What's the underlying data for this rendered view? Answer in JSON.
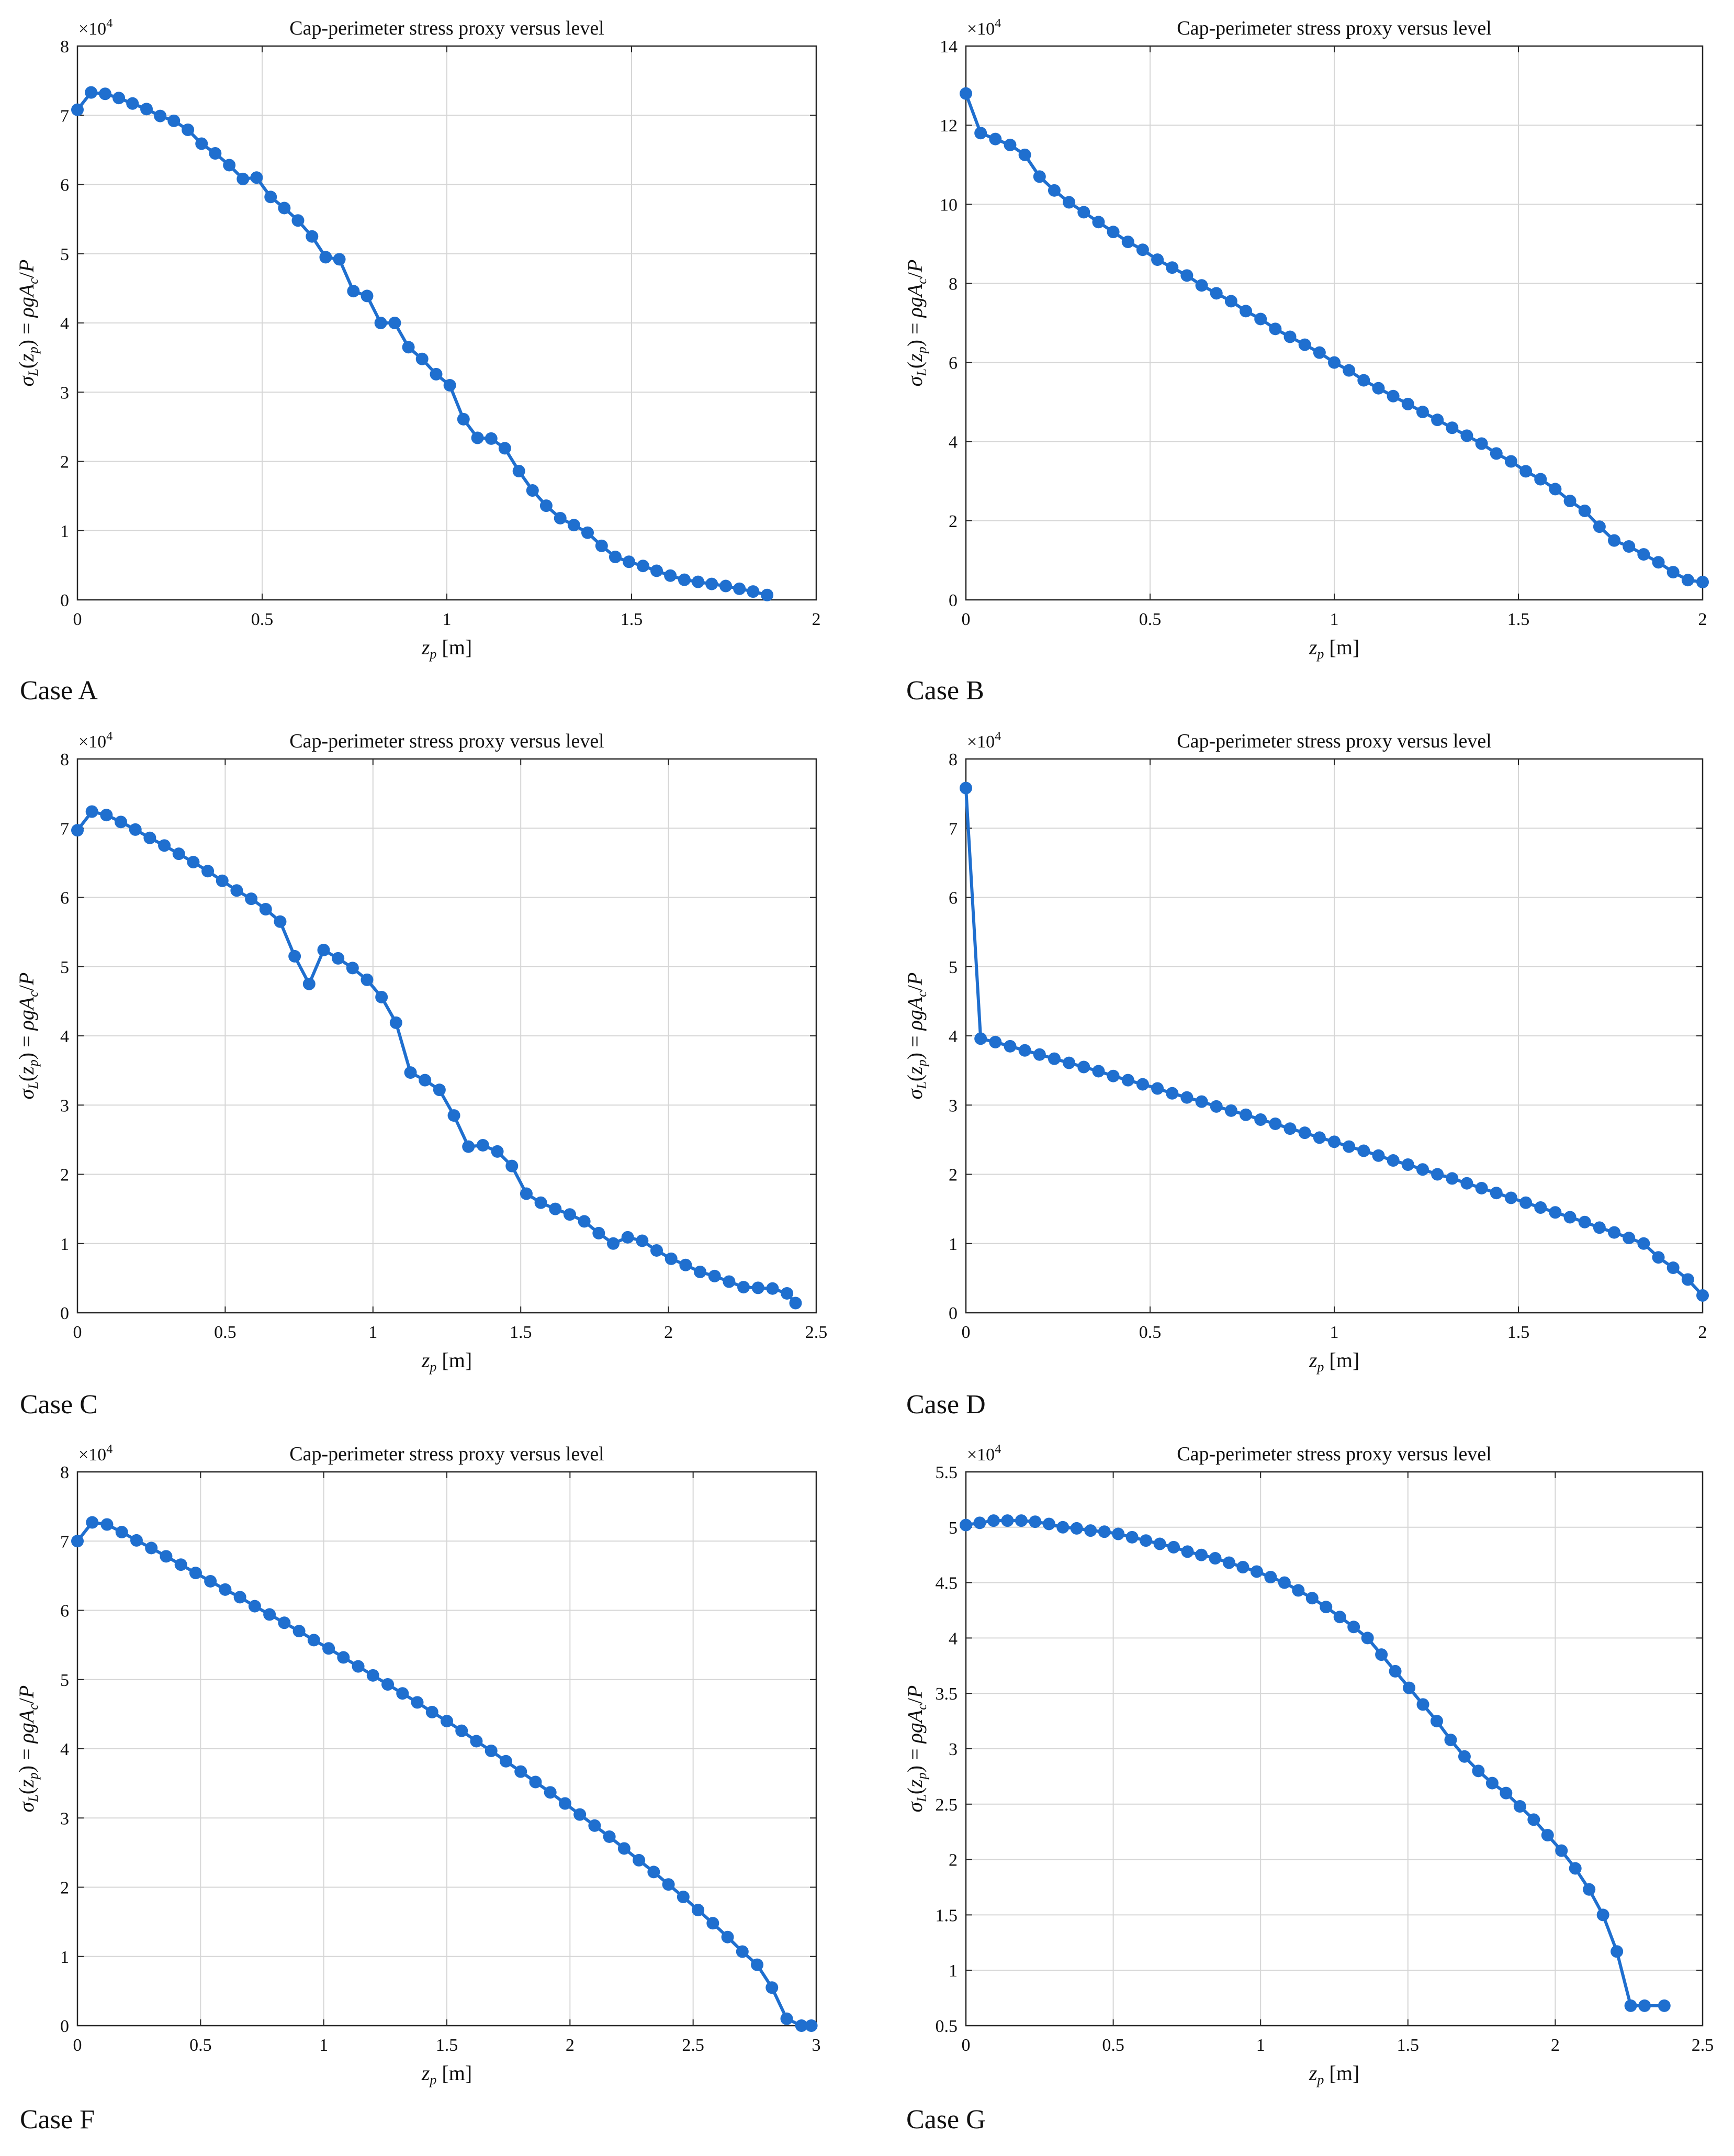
{
  "colors": {
    "series": "#1f6fcf",
    "grid": "#d6d6d6",
    "axis": "#262626",
    "text": "#111111"
  },
  "chart_data": [
    {
      "label": "Case A",
      "type": "line",
      "title": "Cap-perimeter stress proxy versus level",
      "xlabel": "z_p [m]",
      "ylabel": "σ_L(z_p) = ρgA_c/P",
      "multiplier": "×10^4",
      "xlim": [
        0,
        2
      ],
      "ylim": [
        0,
        8
      ],
      "xticks": [
        "0",
        "0.5",
        "1",
        "1.5",
        "2"
      ],
      "yticks": [
        "0",
        "1",
        "2",
        "3",
        "4",
        "5",
        "6",
        "7",
        "8"
      ],
      "grid": true,
      "series": [
        {
          "x": [
            0.0,
            0.037,
            0.075,
            0.112,
            0.149,
            0.187,
            0.224,
            0.261,
            0.299,
            0.336,
            0.373,
            0.411,
            0.448,
            0.485,
            0.523,
            0.56,
            0.597,
            0.635,
            0.672,
            0.709,
            0.747,
            0.784,
            0.821,
            0.859,
            0.896,
            0.933,
            0.971,
            1.008,
            1.045,
            1.083,
            1.12,
            1.157,
            1.195,
            1.232,
            1.269,
            1.307,
            1.344,
            1.381,
            1.419,
            1.456,
            1.493,
            1.531,
            1.568,
            1.605,
            1.643,
            1.68,
            1.717,
            1.755,
            1.792,
            1.829,
            1.867
          ],
          "y": [
            7.08,
            7.33,
            7.31,
            7.25,
            7.17,
            7.09,
            6.99,
            6.92,
            6.79,
            6.59,
            6.45,
            6.28,
            6.08,
            6.1,
            5.82,
            5.66,
            5.48,
            5.25,
            4.95,
            4.92,
            4.46,
            4.39,
            4.0,
            4.0,
            3.65,
            3.48,
            3.26,
            3.1,
            2.61,
            2.34,
            2.33,
            2.19,
            1.86,
            1.58,
            1.36,
            1.18,
            1.08,
            0.97,
            0.78,
            0.62,
            0.55,
            0.49,
            0.42,
            0.35,
            0.29,
            0.26,
            0.23,
            0.2,
            0.16,
            0.12,
            0.07
          ]
        }
      ]
    },
    {
      "label": "Case B",
      "type": "line",
      "title": "Cap-perimeter stress proxy versus level",
      "xlabel": "z_p [m]",
      "ylabel": "σ_L(z_p) = ρgA_c/P",
      "multiplier": "×10^4",
      "xlim": [
        0,
        2
      ],
      "ylim": [
        0,
        14
      ],
      "xticks": [
        "0",
        "0.5",
        "1",
        "1.5",
        "2"
      ],
      "yticks": [
        "0",
        "2",
        "4",
        "6",
        "8",
        "10",
        "12",
        "14"
      ],
      "grid": true,
      "series": [
        {
          "x": [
            0.0,
            0.04,
            0.08,
            0.12,
            0.16,
            0.2,
            0.24,
            0.28,
            0.32,
            0.36,
            0.4,
            0.44,
            0.48,
            0.52,
            0.56,
            0.6,
            0.64,
            0.68,
            0.72,
            0.76,
            0.8,
            0.84,
            0.88,
            0.92,
            0.96,
            1.0,
            1.04,
            1.08,
            1.12,
            1.16,
            1.2,
            1.24,
            1.28,
            1.32,
            1.36,
            1.4,
            1.44,
            1.48,
            1.52,
            1.56,
            1.6,
            1.64,
            1.68,
            1.72,
            1.76,
            1.8,
            1.84,
            1.88,
            1.92,
            1.96,
            2.0
          ],
          "y": [
            12.8,
            11.8,
            11.65,
            11.5,
            11.25,
            10.7,
            10.35,
            10.05,
            9.8,
            9.55,
            9.3,
            9.05,
            8.85,
            8.6,
            8.4,
            8.2,
            7.95,
            7.75,
            7.55,
            7.3,
            7.1,
            6.85,
            6.65,
            6.45,
            6.25,
            6.0,
            5.8,
            5.55,
            5.35,
            5.15,
            4.95,
            4.75,
            4.55,
            4.35,
            4.15,
            3.95,
            3.7,
            3.5,
            3.25,
            3.05,
            2.8,
            2.5,
            2.25,
            1.85,
            1.5,
            1.35,
            1.15,
            0.95,
            0.7,
            0.5,
            0.45
          ]
        }
      ]
    },
    {
      "label": "Case C",
      "type": "line",
      "title": "Cap-perimeter stress proxy versus level",
      "xlabel": "z_p [m]",
      "ylabel": "σ_L(z_p) = ρgA_c/P",
      "multiplier": "×10^4",
      "xlim": [
        0,
        2.5
      ],
      "ylim": [
        0,
        8
      ],
      "xticks": [
        "0",
        "0.5",
        "1",
        "1.5",
        "2",
        "2.5"
      ],
      "yticks": [
        "0",
        "1",
        "2",
        "3",
        "4",
        "5",
        "6",
        "7",
        "8"
      ],
      "grid": true,
      "series": [
        {
          "x": [
            0.0,
            0.049,
            0.098,
            0.147,
            0.196,
            0.245,
            0.294,
            0.343,
            0.392,
            0.441,
            0.49,
            0.539,
            0.588,
            0.637,
            0.686,
            0.735,
            0.784,
            0.833,
            0.882,
            0.931,
            0.98,
            1.029,
            1.078,
            1.127,
            1.176,
            1.225,
            1.274,
            1.323,
            1.372,
            1.421,
            1.47,
            1.519,
            1.568,
            1.617,
            1.666,
            1.715,
            1.764,
            1.813,
            1.862,
            1.911,
            1.96,
            2.009,
            2.058,
            2.107,
            2.156,
            2.205,
            2.254,
            2.303,
            2.352,
            2.401,
            2.43
          ],
          "y": [
            6.97,
            7.24,
            7.19,
            7.09,
            6.98,
            6.86,
            6.75,
            6.63,
            6.51,
            6.38,
            6.24,
            6.1,
            5.98,
            5.83,
            5.65,
            5.15,
            4.75,
            5.24,
            5.12,
            4.98,
            4.81,
            4.56,
            4.19,
            3.47,
            3.36,
            3.22,
            2.85,
            2.4,
            2.42,
            2.33,
            2.12,
            1.72,
            1.59,
            1.5,
            1.42,
            1.32,
            1.15,
            1.0,
            1.09,
            1.04,
            0.9,
            0.78,
            0.69,
            0.59,
            0.53,
            0.45,
            0.37,
            0.36,
            0.35,
            0.28,
            0.14
          ]
        }
      ]
    },
    {
      "label": "Case D",
      "type": "line",
      "title": "Cap-perimeter stress proxy versus level",
      "xlabel": "z_p [m]",
      "ylabel": "σ_L(z_p) = ρgA_c/P",
      "multiplier": "×10^4",
      "xlim": [
        0,
        2
      ],
      "ylim": [
        0,
        8
      ],
      "xticks": [
        "0",
        "0.5",
        "1",
        "1.5",
        "2"
      ],
      "yticks": [
        "0",
        "1",
        "2",
        "3",
        "4",
        "5",
        "6",
        "7",
        "8"
      ],
      "grid": true,
      "series": [
        {
          "x": [
            0.0,
            0.04,
            0.08,
            0.12,
            0.16,
            0.2,
            0.24,
            0.28,
            0.32,
            0.36,
            0.4,
            0.44,
            0.48,
            0.52,
            0.56,
            0.6,
            0.64,
            0.68,
            0.72,
            0.76,
            0.8,
            0.84,
            0.88,
            0.92,
            0.96,
            1.0,
            1.04,
            1.08,
            1.12,
            1.16,
            1.2,
            1.24,
            1.28,
            1.32,
            1.36,
            1.4,
            1.44,
            1.48,
            1.52,
            1.56,
            1.6,
            1.64,
            1.68,
            1.72,
            1.76,
            1.8,
            1.84,
            1.88,
            1.92,
            1.96,
            2.0
          ],
          "y": [
            7.58,
            3.96,
            3.91,
            3.85,
            3.79,
            3.73,
            3.67,
            3.61,
            3.55,
            3.49,
            3.42,
            3.36,
            3.3,
            3.24,
            3.17,
            3.11,
            3.05,
            2.98,
            2.92,
            2.86,
            2.79,
            2.73,
            2.66,
            2.6,
            2.53,
            2.47,
            2.4,
            2.34,
            2.27,
            2.2,
            2.14,
            2.07,
            2.0,
            1.94,
            1.87,
            1.8,
            1.73,
            1.66,
            1.59,
            1.52,
            1.45,
            1.38,
            1.31,
            1.23,
            1.16,
            1.08,
            1.0,
            0.8,
            0.65,
            0.48,
            0.25
          ]
        }
      ]
    },
    {
      "label": "Case F",
      "type": "line",
      "title": "Cap-perimeter stress proxy versus level",
      "xlabel": "z_p [m]",
      "ylabel": "σ_L(z_p) = ρgA_c/P",
      "multiplier": "×10^4",
      "xlim": [
        0,
        3
      ],
      "ylim": [
        0,
        8
      ],
      "xticks": [
        "0",
        "0.5",
        "1",
        "1.5",
        "2",
        "2.5",
        "3"
      ],
      "yticks": [
        "0",
        "1",
        "2",
        "3",
        "4",
        "5",
        "6",
        "7",
        "8"
      ],
      "grid": true,
      "series": [
        {
          "x": [
            0.0,
            0.06,
            0.12,
            0.18,
            0.24,
            0.3,
            0.36,
            0.42,
            0.48,
            0.54,
            0.6,
            0.66,
            0.72,
            0.78,
            0.84,
            0.9,
            0.96,
            1.02,
            1.08,
            1.14,
            1.2,
            1.26,
            1.32,
            1.38,
            1.44,
            1.5,
            1.56,
            1.62,
            1.68,
            1.74,
            1.8,
            1.86,
            1.92,
            1.98,
            2.04,
            2.1,
            2.16,
            2.22,
            2.28,
            2.34,
            2.4,
            2.46,
            2.52,
            2.58,
            2.64,
            2.7,
            2.76,
            2.82,
            2.88,
            2.94,
            2.98
          ],
          "y": [
            7.0,
            7.27,
            7.24,
            7.13,
            7.01,
            6.9,
            6.78,
            6.66,
            6.54,
            6.42,
            6.3,
            6.19,
            6.06,
            5.94,
            5.82,
            5.7,
            5.57,
            5.45,
            5.32,
            5.19,
            5.06,
            4.93,
            4.8,
            4.67,
            4.53,
            4.4,
            4.26,
            4.11,
            3.97,
            3.82,
            3.67,
            3.52,
            3.37,
            3.21,
            3.05,
            2.89,
            2.73,
            2.56,
            2.39,
            2.22,
            2.04,
            1.86,
            1.67,
            1.48,
            1.28,
            1.07,
            0.88,
            0.55,
            0.1,
            0.0,
            0.0
          ]
        }
      ]
    },
    {
      "label": "Case G",
      "type": "line",
      "title": "Cap-perimeter stress proxy versus level",
      "xlabel": "z_p [m]",
      "ylabel": "σ_L(z_p) = ρgA_c/P",
      "multiplier": "×10^4",
      "xlim": [
        0,
        2.5
      ],
      "ylim": [
        0.5,
        5.5
      ],
      "xticks": [
        "0",
        "0.5",
        "1",
        "1.5",
        "2",
        "2.5"
      ],
      "yticks": [
        "0.5",
        "1",
        "1.5",
        "2",
        "2.5",
        "3",
        "3.5",
        "4",
        "4.5",
        "5",
        "5.5"
      ],
      "grid": true,
      "series": [
        {
          "x": [
            0.0,
            0.047,
            0.094,
            0.141,
            0.188,
            0.235,
            0.282,
            0.329,
            0.376,
            0.423,
            0.47,
            0.517,
            0.564,
            0.611,
            0.658,
            0.705,
            0.752,
            0.799,
            0.846,
            0.893,
            0.94,
            0.987,
            1.034,
            1.081,
            1.128,
            1.175,
            1.222,
            1.269,
            1.316,
            1.363,
            1.41,
            1.457,
            1.504,
            1.551,
            1.598,
            1.645,
            1.692,
            1.739,
            1.786,
            1.833,
            1.88,
            1.927,
            1.974,
            2.021,
            2.068,
            2.115,
            2.162,
            2.209,
            2.256,
            2.303,
            2.37
          ],
          "y": [
            5.02,
            5.04,
            5.06,
            5.06,
            5.06,
            5.05,
            5.03,
            5.0,
            4.99,
            4.97,
            4.96,
            4.94,
            4.91,
            4.88,
            4.85,
            4.82,
            4.78,
            4.75,
            4.72,
            4.68,
            4.64,
            4.6,
            4.55,
            4.5,
            4.43,
            4.36,
            4.28,
            4.19,
            4.1,
            4.0,
            3.85,
            3.7,
            3.55,
            3.4,
            3.25,
            3.08,
            2.93,
            2.8,
            2.69,
            2.6,
            2.48,
            2.36,
            2.22,
            2.08,
            1.92,
            1.73,
            1.5,
            1.17,
            0.68,
            0.68,
            0.68
          ]
        }
      ]
    }
  ]
}
